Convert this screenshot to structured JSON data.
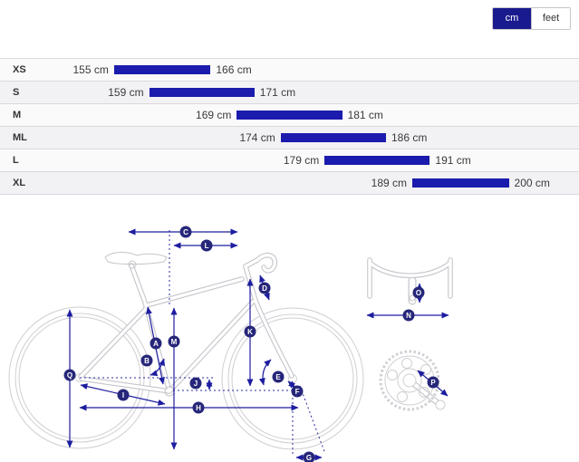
{
  "toggle": {
    "options": [
      {
        "label": "cm",
        "selected": true
      },
      {
        "label": "feet",
        "selected": false
      }
    ]
  },
  "chart_data": {
    "type": "bar",
    "subtype": "horizontal-range-bars",
    "title": "",
    "categories": [
      "XS",
      "S",
      "M",
      "ML",
      "L",
      "XL"
    ],
    "series": [
      {
        "name": "rider-height-range",
        "unit": "cm",
        "ranges": [
          [
            155,
            166
          ],
          [
            159,
            171
          ],
          [
            169,
            181
          ],
          [
            174,
            186
          ],
          [
            179,
            191
          ],
          [
            189,
            200
          ]
        ]
      }
    ],
    "xlim": [
      142,
      208
    ],
    "grid": false,
    "value_labels": [
      "155 cm",
      "166 cm",
      "159 cm",
      "171 cm",
      "169 cm",
      "181 cm",
      "174 cm",
      "186 cm",
      "179 cm",
      "191 cm",
      "189 cm",
      "200 cm"
    ]
  },
  "diagram": {
    "labels": [
      "A",
      "B",
      "C",
      "D",
      "E",
      "F",
      "G",
      "H",
      "I",
      "J",
      "K",
      "L",
      "M",
      "N",
      "O",
      "P",
      "Q"
    ],
    "colors": {
      "annotation": "#1d1da0",
      "label_circle": "#26267a",
      "bike_outline": "#c5c5cb",
      "bar": "#1b1bad",
      "toggle_selected": "#1a1a8f"
    }
  }
}
